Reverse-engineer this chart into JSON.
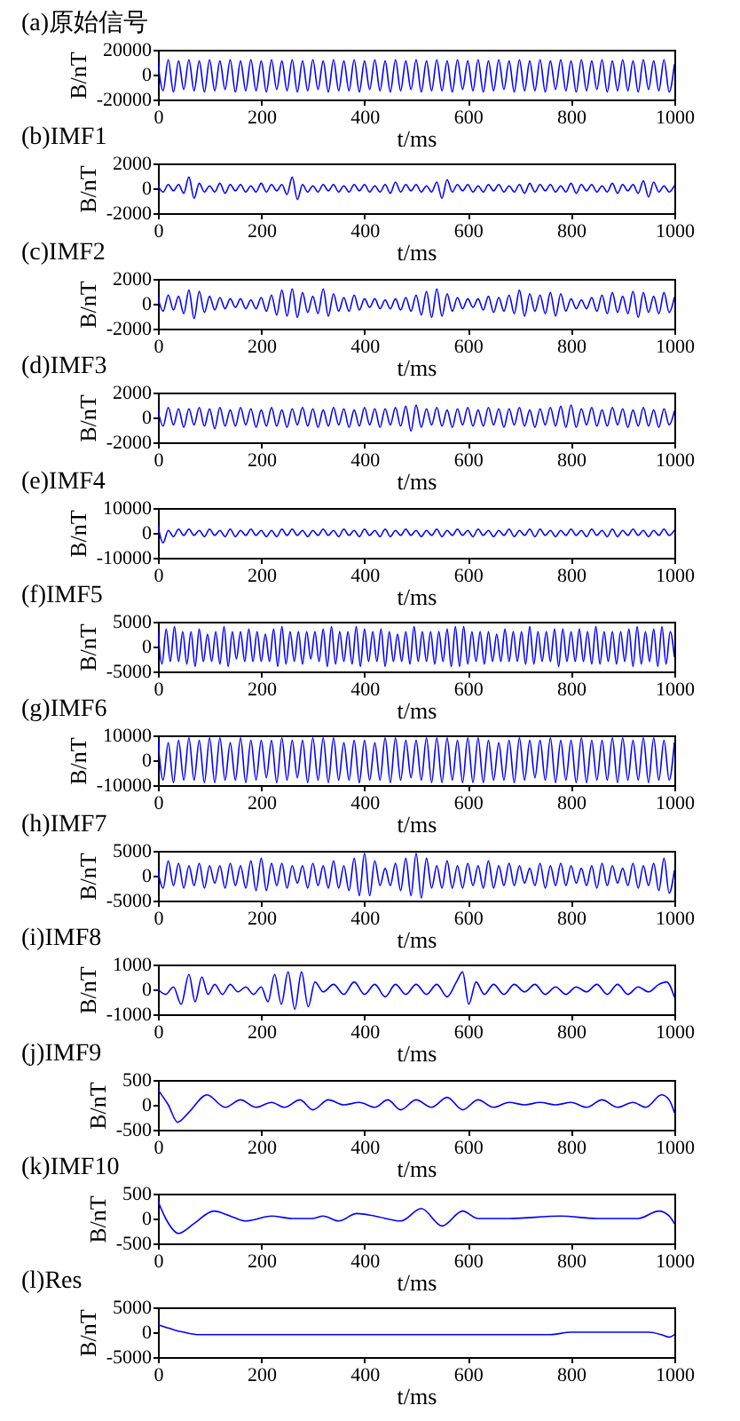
{
  "chart_data": [
    {
      "type": "line",
      "title": "(a)原始信号",
      "xlabel": "t/ms",
      "ylabel": "B/nT",
      "color": "#0000ff",
      "xlim": [
        0,
        1000
      ],
      "xticks": [
        0,
        200,
        400,
        600,
        800,
        1000
      ],
      "ylim": [
        -20000,
        20000
      ],
      "yticks": [
        -20000,
        0,
        20000
      ],
      "x": [
        0,
        10,
        20,
        30,
        40,
        50,
        60,
        70,
        80,
        90,
        100,
        110,
        120,
        130,
        140,
        150,
        160,
        170,
        180,
        190,
        200,
        210,
        220,
        230,
        240,
        250,
        260,
        270,
        280,
        290,
        300,
        310,
        320,
        330,
        340,
        350,
        360,
        370,
        380,
        390,
        400,
        410,
        420,
        430,
        440,
        450,
        460,
        470,
        480,
        490,
        500,
        510,
        520,
        530,
        540,
        550,
        560,
        570,
        580,
        590,
        600,
        610,
        620,
        630,
        640,
        650,
        660,
        670,
        680,
        690,
        700,
        710,
        720,
        730,
        740,
        750,
        760,
        770,
        780,
        790,
        800,
        810,
        820,
        830,
        840,
        850,
        860,
        870,
        880,
        890,
        900,
        910,
        920,
        930,
        940,
        950,
        960,
        970,
        980,
        990,
        1000
      ],
      "values": [
        10000,
        -13000,
        12000,
        -14000,
        11000,
        -12000,
        12000,
        -13000,
        11000,
        -14000,
        12000,
        -13000,
        11000,
        -12000,
        12000,
        -14000,
        11000,
        -13000,
        12000,
        -13000,
        11000,
        -14000,
        12000,
        -12000,
        11000,
        -13000,
        12000,
        -14000,
        11000,
        -13000,
        12000,
        -12000,
        11000,
        -14000,
        12000,
        -13000,
        11000,
        -13000,
        12000,
        -14000,
        11000,
        -12000,
        12000,
        -13000,
        11000,
        -14000,
        12000,
        -13000,
        11000,
        -12000,
        12000,
        -14000,
        11000,
        -13000,
        12000,
        -13000,
        11000,
        -14000,
        12000,
        -12000,
        11000,
        -13000,
        12000,
        -14000,
        11000,
        -13000,
        12000,
        -12000,
        11000,
        -14000,
        12000,
        -13000,
        11000,
        -13000,
        12000,
        -14000,
        11000,
        -12000,
        12000,
        -13000,
        11000,
        -14000,
        12000,
        -13000,
        11000,
        -12000,
        12000,
        -14000,
        11000,
        -13000,
        12000,
        -13000,
        11000,
        -14000,
        12000,
        -12000,
        11000,
        -13000,
        12000,
        -14000,
        8000
      ]
    },
    {
      "type": "line",
      "title": "(b)IMF1",
      "xlabel": "t/ms",
      "ylabel": "B/nT",
      "color": "#0000ff",
      "xlim": [
        0,
        1000
      ],
      "xticks": [
        0,
        200,
        400,
        600,
        800,
        1000
      ],
      "ylim": [
        -2000,
        2000
      ],
      "yticks": [
        -2000,
        0,
        2000
      ],
      "x": [
        0,
        10,
        20,
        30,
        40,
        50,
        60,
        70,
        80,
        90,
        100,
        110,
        120,
        130,
        140,
        150,
        160,
        170,
        180,
        190,
        200,
        210,
        220,
        230,
        240,
        250,
        260,
        270,
        280,
        290,
        300,
        310,
        320,
        330,
        340,
        350,
        360,
        370,
        380,
        390,
        400,
        410,
        420,
        430,
        440,
        450,
        460,
        470,
        480,
        490,
        500,
        510,
        520,
        530,
        540,
        550,
        560,
        570,
        580,
        590,
        600,
        610,
        620,
        630,
        640,
        650,
        660,
        670,
        680,
        690,
        700,
        710,
        720,
        730,
        740,
        750,
        760,
        770,
        780,
        790,
        800,
        810,
        820,
        830,
        840,
        850,
        860,
        870,
        880,
        890,
        900,
        910,
        920,
        930,
        940,
        950,
        960,
        970,
        980,
        990,
        1000
      ],
      "values": [
        200,
        -300,
        300,
        -200,
        300,
        -400,
        900,
        -800,
        400,
        -300,
        200,
        -300,
        400,
        -400,
        300,
        -200,
        300,
        -300,
        200,
        -300,
        400,
        -300,
        300,
        -200,
        300,
        -500,
        900,
        -900,
        300,
        -300,
        200,
        -300,
        300,
        -200,
        300,
        -300,
        200,
        -300,
        300,
        -200,
        300,
        -300,
        200,
        -300,
        300,
        -400,
        500,
        -300,
        300,
        -200,
        300,
        -300,
        200,
        -300,
        500,
        -800,
        700,
        -300,
        300,
        -200,
        300,
        -300,
        200,
        -300,
        300,
        -200,
        300,
        -300,
        200,
        -300,
        300,
        -400,
        400,
        -300,
        300,
        -200,
        300,
        -300,
        200,
        -300,
        400,
        -400,
        300,
        -200,
        300,
        -300,
        200,
        -300,
        400,
        -400,
        300,
        -200,
        300,
        -400,
        600,
        -700,
        500,
        -300,
        200,
        -300,
        200
      ]
    },
    {
      "type": "line",
      "title": "(c)IMF2",
      "xlabel": "t/ms",
      "ylabel": "B/nT",
      "color": "#0000ff",
      "xlim": [
        0,
        1000
      ],
      "xticks": [
        0,
        200,
        400,
        600,
        800,
        1000
      ],
      "ylim": [
        -2000,
        2000
      ],
      "yticks": [
        -2000,
        0,
        2000
      ],
      "x": [
        0,
        10,
        20,
        30,
        40,
        50,
        60,
        70,
        80,
        90,
        100,
        110,
        120,
        130,
        140,
        150,
        160,
        170,
        180,
        190,
        200,
        210,
        220,
        230,
        240,
        250,
        260,
        270,
        280,
        290,
        300,
        310,
        320,
        330,
        340,
        350,
        360,
        370,
        380,
        390,
        400,
        410,
        420,
        430,
        440,
        450,
        460,
        470,
        480,
        490,
        500,
        510,
        520,
        530,
        540,
        550,
        560,
        570,
        580,
        590,
        600,
        610,
        620,
        630,
        640,
        650,
        660,
        670,
        680,
        690,
        700,
        710,
        720,
        730,
        740,
        750,
        760,
        770,
        780,
        790,
        800,
        810,
        820,
        830,
        840,
        850,
        860,
        870,
        880,
        890,
        900,
        910,
        920,
        930,
        940,
        950,
        960,
        970,
        980,
        990,
        1000
      ],
      "values": [
        500,
        -600,
        700,
        -500,
        600,
        -800,
        1100,
        -1200,
        1000,
        -700,
        600,
        -500,
        500,
        -400,
        400,
        -300,
        400,
        -400,
        300,
        -400,
        500,
        -600,
        700,
        -900,
        1100,
        -1000,
        1200,
        -1100,
        900,
        -700,
        600,
        -800,
        1200,
        -1000,
        800,
        -600,
        500,
        -600,
        700,
        -500,
        400,
        -300,
        400,
        -400,
        300,
        -400,
        400,
        -500,
        500,
        -600,
        700,
        -900,
        1000,
        -1100,
        1200,
        -1000,
        800,
        -600,
        500,
        -400,
        400,
        -300,
        400,
        -500,
        600,
        -700,
        500,
        -600,
        700,
        -800,
        1100,
        -1000,
        800,
        -600,
        700,
        -800,
        900,
        -1000,
        800,
        -600,
        400,
        -400,
        300,
        -400,
        500,
        -600,
        700,
        -800,
        900,
        -700,
        600,
        -800,
        1000,
        -1100,
        900,
        -700,
        600,
        -800,
        900,
        -700,
        500
      ]
    },
    {
      "type": "line",
      "title": "(d)IMF3",
      "xlabel": "t/ms",
      "ylabel": "B/nT",
      "color": "#0000ff",
      "xlim": [
        0,
        1000
      ],
      "xticks": [
        0,
        200,
        400,
        600,
        800,
        1000
      ],
      "ylim": [
        -2000,
        2000
      ],
      "yticks": [
        -2000,
        0,
        2000
      ],
      "x": [
        0,
        10,
        20,
        30,
        40,
        50,
        60,
        70,
        80,
        90,
        100,
        110,
        120,
        130,
        140,
        150,
        160,
        170,
        180,
        190,
        200,
        210,
        220,
        230,
        240,
        250,
        260,
        270,
        280,
        290,
        300,
        310,
        320,
        330,
        340,
        350,
        360,
        370,
        380,
        390,
        400,
        410,
        420,
        430,
        440,
        450,
        460,
        470,
        480,
        490,
        500,
        510,
        520,
        530,
        540,
        550,
        560,
        570,
        580,
        590,
        600,
        610,
        620,
        630,
        640,
        650,
        660,
        670,
        680,
        690,
        700,
        710,
        720,
        730,
        740,
        750,
        760,
        770,
        780,
        790,
        800,
        810,
        820,
        830,
        840,
        850,
        860,
        870,
        880,
        890,
        900,
        910,
        920,
        930,
        940,
        950,
        960,
        970,
        980,
        990,
        1000
      ],
      "values": [
        600,
        -700,
        800,
        -600,
        700,
        -800,
        700,
        -600,
        800,
        -700,
        700,
        -900,
        800,
        -700,
        600,
        -700,
        800,
        -600,
        700,
        -800,
        600,
        -700,
        800,
        -700,
        600,
        -800,
        700,
        -600,
        800,
        -700,
        700,
        -800,
        600,
        -700,
        800,
        -600,
        700,
        -800,
        600,
        -700,
        800,
        -600,
        700,
        -800,
        700,
        -600,
        800,
        -700,
        900,
        -1100,
        1000,
        -800,
        700,
        -600,
        800,
        -700,
        600,
        -800,
        700,
        -600,
        800,
        -700,
        600,
        -700,
        800,
        -600,
        700,
        -800,
        700,
        -600,
        800,
        -700,
        600,
        -800,
        700,
        -600,
        800,
        -700,
        900,
        -800,
        1000,
        -800,
        700,
        -600,
        800,
        -700,
        600,
        -700,
        800,
        -600,
        700,
        -800,
        600,
        -700,
        800,
        -700,
        600,
        -800,
        700,
        -600,
        500
      ]
    },
    {
      "type": "line",
      "title": "(e)IMF4",
      "xlabel": "t/ms",
      "ylabel": "B/nT",
      "color": "#0000ff",
      "xlim": [
        0,
        1000
      ],
      "xticks": [
        0,
        200,
        400,
        600,
        800,
        1000
      ],
      "ylim": [
        -10000,
        10000
      ],
      "yticks": [
        -10000,
        0,
        10000
      ],
      "x": [
        0,
        10,
        20,
        30,
        40,
        50,
        60,
        70,
        80,
        90,
        100,
        110,
        120,
        130,
        140,
        150,
        160,
        170,
        180,
        190,
        200,
        210,
        220,
        230,
        240,
        250,
        260,
        270,
        280,
        290,
        300,
        310,
        320,
        330,
        340,
        350,
        360,
        370,
        380,
        390,
        400,
        410,
        420,
        430,
        440,
        450,
        460,
        470,
        480,
        490,
        500,
        510,
        520,
        530,
        540,
        550,
        560,
        570,
        580,
        590,
        600,
        610,
        620,
        630,
        640,
        650,
        660,
        670,
        680,
        690,
        700,
        710,
        720,
        730,
        740,
        750,
        760,
        770,
        780,
        790,
        800,
        810,
        820,
        830,
        840,
        850,
        860,
        870,
        880,
        890,
        900,
        910,
        920,
        930,
        940,
        950,
        960,
        970,
        980,
        990,
        1000
      ],
      "values": [
        3000,
        -4000,
        1000,
        -1500,
        1500,
        -1000,
        1500,
        -1000,
        1000,
        -1500,
        1500,
        -1000,
        1000,
        -1500,
        1500,
        -1500,
        1000,
        -1000,
        1500,
        -1000,
        1000,
        -1500,
        1000,
        -1500,
        1500,
        -1000,
        1500,
        -1000,
        1000,
        -1500,
        1000,
        -1000,
        1500,
        -1000,
        1000,
        -1500,
        1500,
        -1000,
        1000,
        -1500,
        1500,
        -1000,
        1000,
        -1500,
        1500,
        -1500,
        1000,
        -1000,
        1500,
        -1000,
        1000,
        -1500,
        1000,
        -1000,
        1500,
        -1500,
        1000,
        -1000,
        1500,
        -1000,
        1000,
        -1500,
        1500,
        -1000,
        1000,
        -1500,
        1000,
        -1000,
        1500,
        -1500,
        1000,
        -1000,
        1500,
        -1500,
        1500,
        -1000,
        1000,
        -1500,
        1000,
        -1000,
        1500,
        -1000,
        1000,
        -1500,
        1500,
        -1000,
        1000,
        -1500,
        1500,
        -1500,
        1000,
        -1000,
        1500,
        -1000,
        1000,
        -1500,
        1000,
        -1000,
        1500,
        -1000,
        1000
      ]
    },
    {
      "type": "line",
      "title": "(f)IMF5",
      "xlabel": "t/ms",
      "ylabel": "B/nT",
      "color": "#0000ff",
      "xlim": [
        0,
        1000
      ],
      "xticks": [
        0,
        200,
        400,
        600,
        800,
        1000
      ],
      "ylim": [
        -5000,
        5000
      ],
      "yticks": [
        -5000,
        0,
        5000
      ],
      "x": [
        0,
        8,
        16,
        24,
        32,
        40,
        48,
        56,
        64,
        72,
        80,
        88,
        96,
        104,
        112,
        120,
        128,
        136,
        144,
        152,
        160,
        168,
        176,
        184,
        192,
        200,
        208,
        216,
        224,
        232,
        240,
        248,
        256,
        264,
        272,
        280,
        288,
        296,
        304,
        312,
        320,
        328,
        336,
        344,
        352,
        360,
        368,
        376,
        384,
        392,
        400,
        408,
        416,
        424,
        432,
        440,
        448,
        456,
        464,
        472,
        480,
        488,
        496,
        504,
        512,
        520,
        528,
        536,
        544,
        552,
        560,
        568,
        576,
        584,
        592,
        600,
        608,
        616,
        624,
        632,
        640,
        648,
        656,
        664,
        672,
        680,
        688,
        696,
        704,
        712,
        720,
        728,
        736,
        744,
        752,
        760,
        768,
        776,
        784,
        792,
        800,
        808,
        816,
        824,
        832,
        840,
        848,
        856,
        864,
        872,
        880,
        888,
        896,
        904,
        912,
        920,
        928,
        936,
        944,
        952,
        960,
        968,
        976,
        984,
        992,
        1000
      ],
      "values": [
        3000,
        -3500,
        3500,
        -3000,
        4000,
        -3000,
        3000,
        -3500,
        3000,
        -4000,
        3500,
        -3000,
        2500,
        -3000,
        3000,
        -3500,
        4000,
        -4000,
        3000,
        -2500,
        3000,
        -3000,
        3500,
        -3000,
        3000,
        -3000,
        2500,
        -3000,
        3500,
        -4000,
        4000,
        -3500,
        3000,
        -3000,
        3000,
        -3500,
        3000,
        -2500,
        3000,
        -3000,
        3500,
        -4000,
        4000,
        -3500,
        3000,
        -3000,
        3000,
        -3500,
        4000,
        -4000,
        3500,
        -3000,
        3000,
        -3000,
        3500,
        -4000,
        3000,
        -3000,
        2500,
        -3000,
        3000,
        -3500,
        4000,
        -3000,
        3000,
        -3000,
        3000,
        -3500,
        3000,
        -3000,
        3500,
        -4000,
        4000,
        -4000,
        4000,
        -3500,
        3000,
        -3000,
        3000,
        -3500,
        3000,
        -3000,
        2500,
        -3000,
        3500,
        -3000,
        3000,
        -3000,
        3000,
        -3500,
        4000,
        -3500,
        3000,
        -3000,
        3000,
        -3000,
        3500,
        -4000,
        3500,
        -3000,
        3000,
        -3000,
        3500,
        -3000,
        3000,
        -3500,
        4000,
        -3500,
        3000,
        -3000,
        3000,
        -3500,
        3000,
        -3000,
        3500,
        -4000,
        4000,
        -3500,
        3000,
        -3000,
        3500,
        -4000,
        4000,
        -3500,
        3000,
        -2000
      ]
    },
    {
      "type": "line",
      "title": "(g)IMF6",
      "xlabel": "t/ms",
      "ylabel": "B/nT",
      "color": "#0000ff",
      "xlim": [
        0,
        1000
      ],
      "xticks": [
        0,
        200,
        400,
        600,
        800,
        1000
      ],
      "ylim": [
        -10000,
        10000
      ],
      "yticks": [
        -10000,
        0,
        10000
      ],
      "x": [
        0,
        10,
        20,
        30,
        40,
        50,
        60,
        70,
        80,
        90,
        100,
        110,
        120,
        130,
        140,
        150,
        160,
        170,
        180,
        190,
        200,
        210,
        220,
        230,
        240,
        250,
        260,
        270,
        280,
        290,
        300,
        310,
        320,
        330,
        340,
        350,
        360,
        370,
        380,
        390,
        400,
        410,
        420,
        430,
        440,
        450,
        460,
        470,
        480,
        490,
        500,
        510,
        520,
        530,
        540,
        550,
        560,
        570,
        580,
        590,
        600,
        610,
        620,
        630,
        640,
        650,
        660,
        670,
        680,
        690,
        700,
        710,
        720,
        730,
        740,
        750,
        760,
        770,
        780,
        790,
        800,
        810,
        820,
        830,
        840,
        850,
        860,
        870,
        880,
        890,
        900,
        910,
        920,
        930,
        940,
        950,
        960,
        970,
        980,
        990,
        1000
      ],
      "values": [
        8000,
        -8000,
        7000,
        -9000,
        8000,
        -8000,
        9000,
        -8000,
        8000,
        -9000,
        9000,
        -9000,
        9000,
        -8000,
        7000,
        -8000,
        9000,
        -9000,
        8000,
        -8000,
        8000,
        -7000,
        8000,
        -9000,
        9000,
        -8000,
        8000,
        -7000,
        8000,
        -9000,
        9000,
        -8000,
        9000,
        -9000,
        9000,
        -8000,
        7000,
        -8000,
        8000,
        -9000,
        8000,
        -8000,
        7000,
        -8000,
        9000,
        -9000,
        9000,
        -8000,
        8000,
        -7000,
        8000,
        -8000,
        9000,
        -9000,
        9000,
        -9000,
        9000,
        -8000,
        8000,
        -9000,
        9000,
        -9000,
        9000,
        -9000,
        8000,
        -8000,
        7000,
        -8000,
        8000,
        -9000,
        9000,
        -8000,
        8000,
        -7000,
        8000,
        -8000,
        9000,
        -9000,
        8000,
        -8000,
        8000,
        -9000,
        9000,
        -9000,
        8000,
        -8000,
        8000,
        -8000,
        9000,
        -9000,
        9000,
        -8000,
        8000,
        -8000,
        9000,
        -9000,
        9000,
        -8000,
        8000,
        -8000,
        7000
      ]
    },
    {
      "type": "line",
      "title": "(h)IMF7",
      "xlabel": "t/ms",
      "ylabel": "B/nT",
      "color": "#0000ff",
      "xlim": [
        0,
        1000
      ],
      "xticks": [
        0,
        200,
        400,
        600,
        800,
        1000
      ],
      "ylim": [
        -5000,
        5000
      ],
      "yticks": [
        -5000,
        0,
        5000
      ],
      "x": [
        0,
        10,
        20,
        30,
        40,
        50,
        60,
        70,
        80,
        90,
        100,
        110,
        120,
        130,
        140,
        150,
        160,
        170,
        180,
        190,
        200,
        210,
        220,
        230,
        240,
        250,
        260,
        270,
        280,
        290,
        300,
        310,
        320,
        330,
        340,
        350,
        360,
        370,
        380,
        390,
        400,
        410,
        420,
        430,
        440,
        450,
        460,
        470,
        480,
        490,
        500,
        510,
        520,
        530,
        540,
        550,
        560,
        570,
        580,
        590,
        600,
        610,
        620,
        630,
        640,
        650,
        660,
        670,
        680,
        690,
        700,
        710,
        720,
        730,
        740,
        750,
        760,
        770,
        780,
        790,
        800,
        810,
        820,
        830,
        840,
        850,
        860,
        870,
        880,
        890,
        900,
        910,
        920,
        930,
        940,
        950,
        960,
        970,
        980,
        990,
        1000
      ],
      "values": [
        1000,
        -2500,
        3000,
        -2000,
        2500,
        -2500,
        2000,
        -2000,
        2500,
        -2500,
        2000,
        -1500,
        2000,
        -2500,
        2500,
        -2000,
        2000,
        -2500,
        3000,
        -3000,
        3500,
        -3000,
        2500,
        -2000,
        2500,
        -2500,
        2000,
        -1500,
        2000,
        -2500,
        2500,
        -2000,
        2000,
        -2500,
        3000,
        -2500,
        2000,
        -3000,
        3500,
        -4000,
        4500,
        -4000,
        3000,
        -2000,
        1500,
        -2000,
        2500,
        -3000,
        3500,
        -4000,
        4500,
        -4500,
        3500,
        -2500,
        2000,
        -2500,
        3000,
        -2500,
        2000,
        -2500,
        2500,
        -2000,
        2000,
        -2500,
        3000,
        -2500,
        2000,
        -2000,
        2500,
        -2000,
        2000,
        -1500,
        1500,
        -2000,
        2500,
        -2500,
        2000,
        -2000,
        2500,
        -2000,
        2000,
        -1500,
        1500,
        -2000,
        2000,
        -2500,
        2500,
        -2000,
        2000,
        -1500,
        1500,
        -2000,
        2500,
        -2500,
        2000,
        -2000,
        2500,
        -3000,
        3500,
        -3500,
        1000
      ]
    },
    {
      "type": "line",
      "title": "(i)IMF8",
      "xlabel": "t/ms",
      "ylabel": "B/nT",
      "color": "#0000ff",
      "xlim": [
        0,
        1000
      ],
      "xticks": [
        0,
        200,
        400,
        600,
        800,
        1000
      ],
      "ylim": [
        -1000,
        1000
      ],
      "yticks": [
        -1000,
        0,
        1000
      ],
      "x": [
        0,
        15,
        30,
        45,
        60,
        72,
        85,
        97,
        110,
        125,
        140,
        155,
        170,
        185,
        200,
        213,
        226,
        239,
        252,
        265,
        278,
        291,
        304,
        320,
        340,
        360,
        380,
        400,
        420,
        440,
        460,
        480,
        500,
        520,
        540,
        560,
        578,
        590,
        602,
        616,
        632,
        650,
        670,
        690,
        710,
        730,
        750,
        770,
        790,
        810,
        830,
        850,
        870,
        890,
        910,
        930,
        950,
        970,
        985,
        1000
      ],
      "values": [
        0,
        -200,
        100,
        -600,
        600,
        -500,
        500,
        -200,
        200,
        -200,
        200,
        -100,
        100,
        -200,
        100,
        -500,
        600,
        -600,
        700,
        -800,
        700,
        -700,
        300,
        -100,
        200,
        -200,
        300,
        -200,
        200,
        -300,
        200,
        -200,
        200,
        -200,
        200,
        -300,
        300,
        700,
        -600,
        300,
        -200,
        200,
        -200,
        200,
        -100,
        200,
        -200,
        100,
        -200,
        100,
        -100,
        200,
        -200,
        200,
        -200,
        100,
        -100,
        200,
        300,
        -300
      ]
    },
    {
      "type": "line",
      "title": "(j)IMF9",
      "xlabel": "t/ms",
      "ylabel": "B/nT",
      "color": "#0000ff",
      "xlim": [
        0,
        1000
      ],
      "xticks": [
        0,
        200,
        400,
        600,
        800,
        1000
      ],
      "ylim": [
        -500,
        500
      ],
      "yticks": [
        -500,
        0,
        500
      ],
      "x": [
        0,
        20,
        38,
        60,
        95,
        130,
        160,
        190,
        220,
        245,
        275,
        300,
        330,
        360,
        390,
        420,
        445,
        470,
        500,
        530,
        560,
        590,
        620,
        650,
        680,
        710,
        740,
        770,
        800,
        830,
        860,
        890,
        920,
        945,
        975,
        990,
        1000
      ],
      "values": [
        300,
        0,
        -350,
        -150,
        200,
        -50,
        100,
        -50,
        50,
        -50,
        100,
        -100,
        100,
        0,
        50,
        -50,
        100,
        -100,
        100,
        -50,
        150,
        -100,
        100,
        -50,
        50,
        0,
        50,
        0,
        50,
        -50,
        100,
        -50,
        50,
        -50,
        200,
        100,
        -150
      ]
    },
    {
      "type": "line",
      "title": "(k)IMF10",
      "xlabel": "t/ms",
      "ylabel": "B/nT",
      "color": "#0000ff",
      "xlim": [
        0,
        1000
      ],
      "xticks": [
        0,
        200,
        400,
        600,
        800,
        1000
      ],
      "ylim": [
        -500,
        500
      ],
      "yticks": [
        -500,
        0,
        500
      ],
      "x": [
        0,
        15,
        40,
        70,
        108,
        140,
        170,
        220,
        260,
        300,
        320,
        350,
        385,
        420,
        470,
        510,
        550,
        590,
        620,
        680,
        780,
        850,
        900,
        930,
        970,
        990,
        1000
      ],
      "values": [
        350,
        0,
        -300,
        -100,
        150,
        50,
        -50,
        50,
        0,
        0,
        50,
        -50,
        100,
        50,
        -50,
        200,
        -150,
        150,
        0,
        0,
        50,
        0,
        0,
        0,
        150,
        50,
        -100
      ]
    },
    {
      "type": "line",
      "title": "(l)Res",
      "xlabel": "t/ms",
      "ylabel": "B/nT",
      "color": "#0000ff",
      "xlim": [
        0,
        1000
      ],
      "xticks": [
        0,
        200,
        400,
        600,
        800,
        1000
      ],
      "ylim": [
        -5000,
        5000
      ],
      "yticks": [
        -5000,
        0,
        5000
      ],
      "x": [
        0,
        15,
        30,
        50,
        80,
        760,
        800,
        950,
        975,
        990,
        1000
      ],
      "values": [
        1500,
        1000,
        500,
        0,
        -500,
        -500,
        0,
        0,
        -500,
        -1000,
        -500
      ]
    }
  ]
}
